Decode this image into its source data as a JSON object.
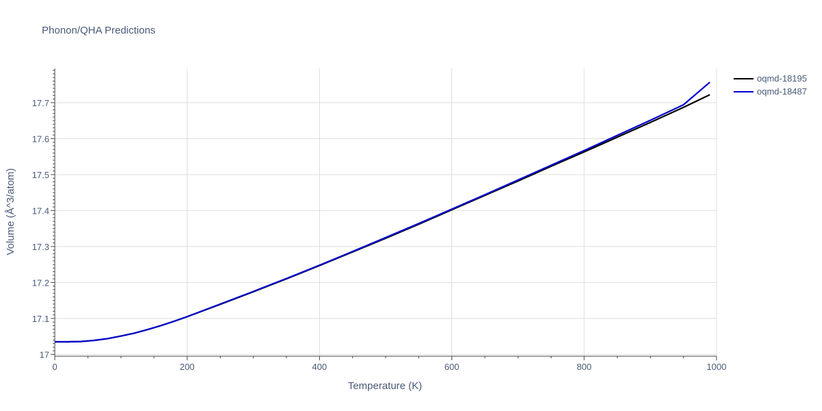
{
  "chart_data": {
    "type": "line",
    "title": "Phonon/QHA Predictions",
    "xlabel": "Temperature (K)",
    "ylabel": "Volume (Å^3/atom)",
    "xlim": [
      0,
      1000
    ],
    "ylim": [
      16.995,
      17.795
    ],
    "xticks": [
      0,
      200,
      400,
      600,
      800,
      1000
    ],
    "xtick_labels": [
      "0",
      "200",
      "400",
      "600",
      "800",
      "1000"
    ],
    "yticks": [
      17.0,
      17.1,
      17.2,
      17.3,
      17.4,
      17.5,
      17.6,
      17.7
    ],
    "ytick_labels": [
      "17",
      "17.1",
      "17.2",
      "17.3",
      "17.4",
      "17.5",
      "17.6",
      "17.7"
    ],
    "grid": true,
    "legend": "top-right",
    "series": [
      {
        "name": "oqmd-18195",
        "color": "#000000",
        "x": [
          0,
          20,
          40,
          60,
          80,
          100,
          120,
          140,
          160,
          180,
          200,
          250,
          300,
          350,
          400,
          450,
          500,
          550,
          600,
          650,
          700,
          750,
          800,
          850,
          900,
          950,
          990
        ],
        "y": [
          17.035,
          17.035,
          17.036,
          17.039,
          17.044,
          17.051,
          17.059,
          17.069,
          17.08,
          17.092,
          17.105,
          17.139,
          17.174,
          17.21,
          17.247,
          17.285,
          17.323,
          17.362,
          17.402,
          17.442,
          17.482,
          17.523,
          17.563,
          17.604,
          17.645,
          17.687,
          17.722
        ]
      },
      {
        "name": "oqmd-18487",
        "color": "#0000cc",
        "x": [
          0,
          20,
          40,
          60,
          80,
          100,
          120,
          140,
          160,
          180,
          200,
          250,
          300,
          350,
          400,
          450,
          500,
          550,
          600,
          650,
          700,
          750,
          800,
          850,
          900,
          950,
          990
        ],
        "y": [
          17.035,
          17.035,
          17.036,
          17.039,
          17.044,
          17.051,
          17.059,
          17.069,
          17.08,
          17.092,
          17.105,
          17.14,
          17.175,
          17.211,
          17.248,
          17.286,
          17.325,
          17.364,
          17.404,
          17.444,
          17.485,
          17.526,
          17.567,
          17.609,
          17.651,
          17.694,
          17.757
        ]
      }
    ]
  }
}
